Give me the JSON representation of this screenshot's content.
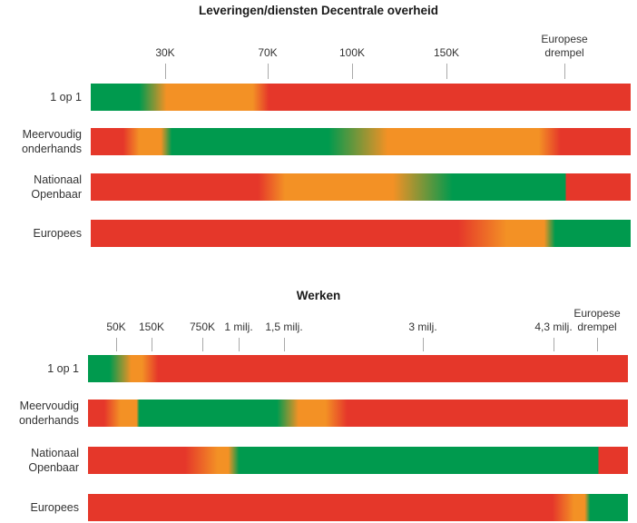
{
  "colors": {
    "green": "#009a4e",
    "orange": "#f39125",
    "red": "#e5372a"
  },
  "chart_data": [
    {
      "type": "heatmap",
      "title": "Leveringen/diensten Decentrale overheid",
      "ticks": [
        {
          "label": "30K",
          "value": 30000
        },
        {
          "label": "70K",
          "value": 70000
        },
        {
          "label": "100K",
          "value": 100000
        },
        {
          "label": "150K",
          "value": 150000
        },
        {
          "label": "Europese drempel",
          "label_lines": [
            "Europese",
            "drempel"
          ],
          "value": 215000
        }
      ],
      "rows": [
        {
          "label": "1 op 1",
          "label_lines": [
            "1 op 1"
          ],
          "stops": [
            [
              "green",
              0
            ],
            [
              "green",
              9
            ],
            [
              "orange",
              14
            ],
            [
              "orange",
              30
            ],
            [
              "red",
              33
            ],
            [
              "red",
              100
            ]
          ]
        },
        {
          "label": "Meervoudig onderhands",
          "label_lines": [
            "Meervoudig",
            "onderhands"
          ],
          "stops": [
            [
              "red",
              0
            ],
            [
              "red",
              6
            ],
            [
              "orange",
              9
            ],
            [
              "orange",
              13
            ],
            [
              "green",
              15
            ],
            [
              "green",
              44
            ],
            [
              "orange",
              55
            ],
            [
              "orange",
              83
            ],
            [
              "red",
              87
            ],
            [
              "red",
              100
            ]
          ]
        },
        {
          "label": "Nationaal Openbaar",
          "label_lines": [
            "Nationaal",
            "Openbaar"
          ],
          "stops": [
            [
              "red",
              0
            ],
            [
              "red",
              31
            ],
            [
              "orange",
              36
            ],
            [
              "orange",
              56
            ],
            [
              "green",
              67
            ],
            [
              "green",
              88
            ],
            [
              "red",
              88
            ],
            [
              "red",
              100
            ]
          ]
        },
        {
          "label": "Europees",
          "label_lines": [
            "Europees"
          ],
          "stops": [
            [
              "red",
              0
            ],
            [
              "red",
              68
            ],
            [
              "orange",
              77
            ],
            [
              "orange",
              84
            ],
            [
              "green",
              86
            ],
            [
              "green",
              100
            ]
          ]
        }
      ]
    },
    {
      "type": "heatmap",
      "title": "Werken",
      "ticks": [
        {
          "label": "50K",
          "value": 50000
        },
        {
          "label": "150K",
          "value": 150000
        },
        {
          "label": "750K",
          "value": 750000
        },
        {
          "label": "1 milj.",
          "value": 1000000
        },
        {
          "label": "1,5 milj.",
          "value": 1500000
        },
        {
          "label": "3 milj.",
          "value": 3000000
        },
        {
          "label": "4,3 milj.",
          "value": 4300000
        },
        {
          "label": "Europese drempel",
          "label_lines": [
            "Europese",
            "drempel"
          ],
          "value": 5350000
        }
      ],
      "rows": [
        {
          "label": "1 op 1",
          "label_lines": [
            "1 op 1"
          ],
          "stops": [
            [
              "green",
              0
            ],
            [
              "green",
              4
            ],
            [
              "orange",
              8
            ],
            [
              "orange",
              10
            ],
            [
              "red",
              13
            ],
            [
              "red",
              100
            ]
          ]
        },
        {
          "label": "Meervoudig onderhands",
          "label_lines": [
            "Meervoudig",
            "onderhands"
          ],
          "stops": [
            [
              "red",
              0
            ],
            [
              "red",
              3
            ],
            [
              "orange",
              6
            ],
            [
              "orange",
              9
            ],
            [
              "green",
              9.5
            ],
            [
              "green",
              35
            ],
            [
              "orange",
              39
            ],
            [
              "orange",
              44
            ],
            [
              "red",
              48
            ],
            [
              "red",
              100
            ]
          ]
        },
        {
          "label": "Nationaal Openbaar",
          "label_lines": [
            "Nationaal",
            "Openbaar"
          ],
          "stops": [
            [
              "red",
              0
            ],
            [
              "red",
              18
            ],
            [
              "orange",
              24
            ],
            [
              "orange",
              26
            ],
            [
              "green",
              28
            ],
            [
              "green",
              94.5
            ],
            [
              "red",
              94.5
            ],
            [
              "red",
              100
            ]
          ]
        },
        {
          "label": "Europees",
          "label_lines": [
            "Europees"
          ],
          "stops": [
            [
              "red",
              0
            ],
            [
              "red",
              86
            ],
            [
              "orange",
              90
            ],
            [
              "orange",
              92
            ],
            [
              "green",
              93
            ],
            [
              "green",
              100
            ]
          ]
        }
      ]
    }
  ]
}
